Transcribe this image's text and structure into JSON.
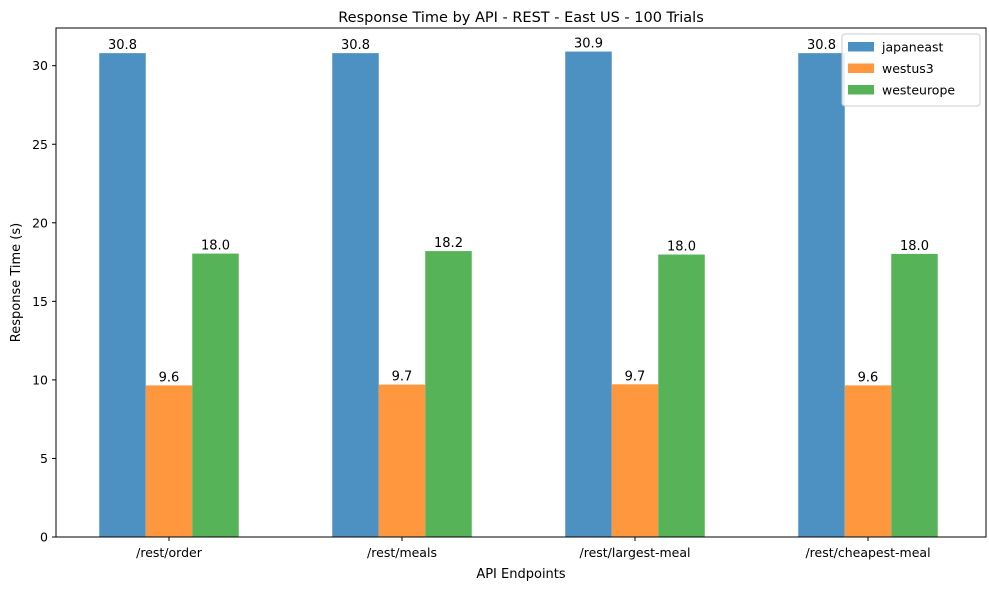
{
  "chart_data": {
    "type": "bar",
    "title": "Response Time by API  - REST - East US - 100 Trials",
    "xlabel": "API Endpoints",
    "ylabel": "Response Time (s)",
    "categories": [
      "/rest/order",
      "/rest/meals",
      "/rest/largest-meal",
      "/rest/cheapest-meal"
    ],
    "series": [
      {
        "name": "japaneast",
        "values": [
          30.8,
          30.8,
          30.9,
          30.8
        ],
        "labels": [
          "30.8",
          "30.8",
          "30.9",
          "30.8"
        ],
        "color": "#4c91c2"
      },
      {
        "name": "westus3",
        "values": [
          9.65,
          9.7,
          9.72,
          9.65
        ],
        "labels": [
          "9.6",
          "9.7",
          "9.7",
          "9.6"
        ],
        "color": "#fe973e"
      },
      {
        "name": "westeurope",
        "values": [
          18.04,
          18.2,
          17.98,
          18.02
        ],
        "labels": [
          "18.0",
          "18.2",
          "18.0",
          "18.0"
        ],
        "color": "#56b357"
      }
    ],
    "ylim": [
      0,
      32.4
    ],
    "yticks": [
      0,
      5,
      10,
      15,
      20,
      25,
      30
    ],
    "grid": false,
    "legend_position": "top-right"
  }
}
